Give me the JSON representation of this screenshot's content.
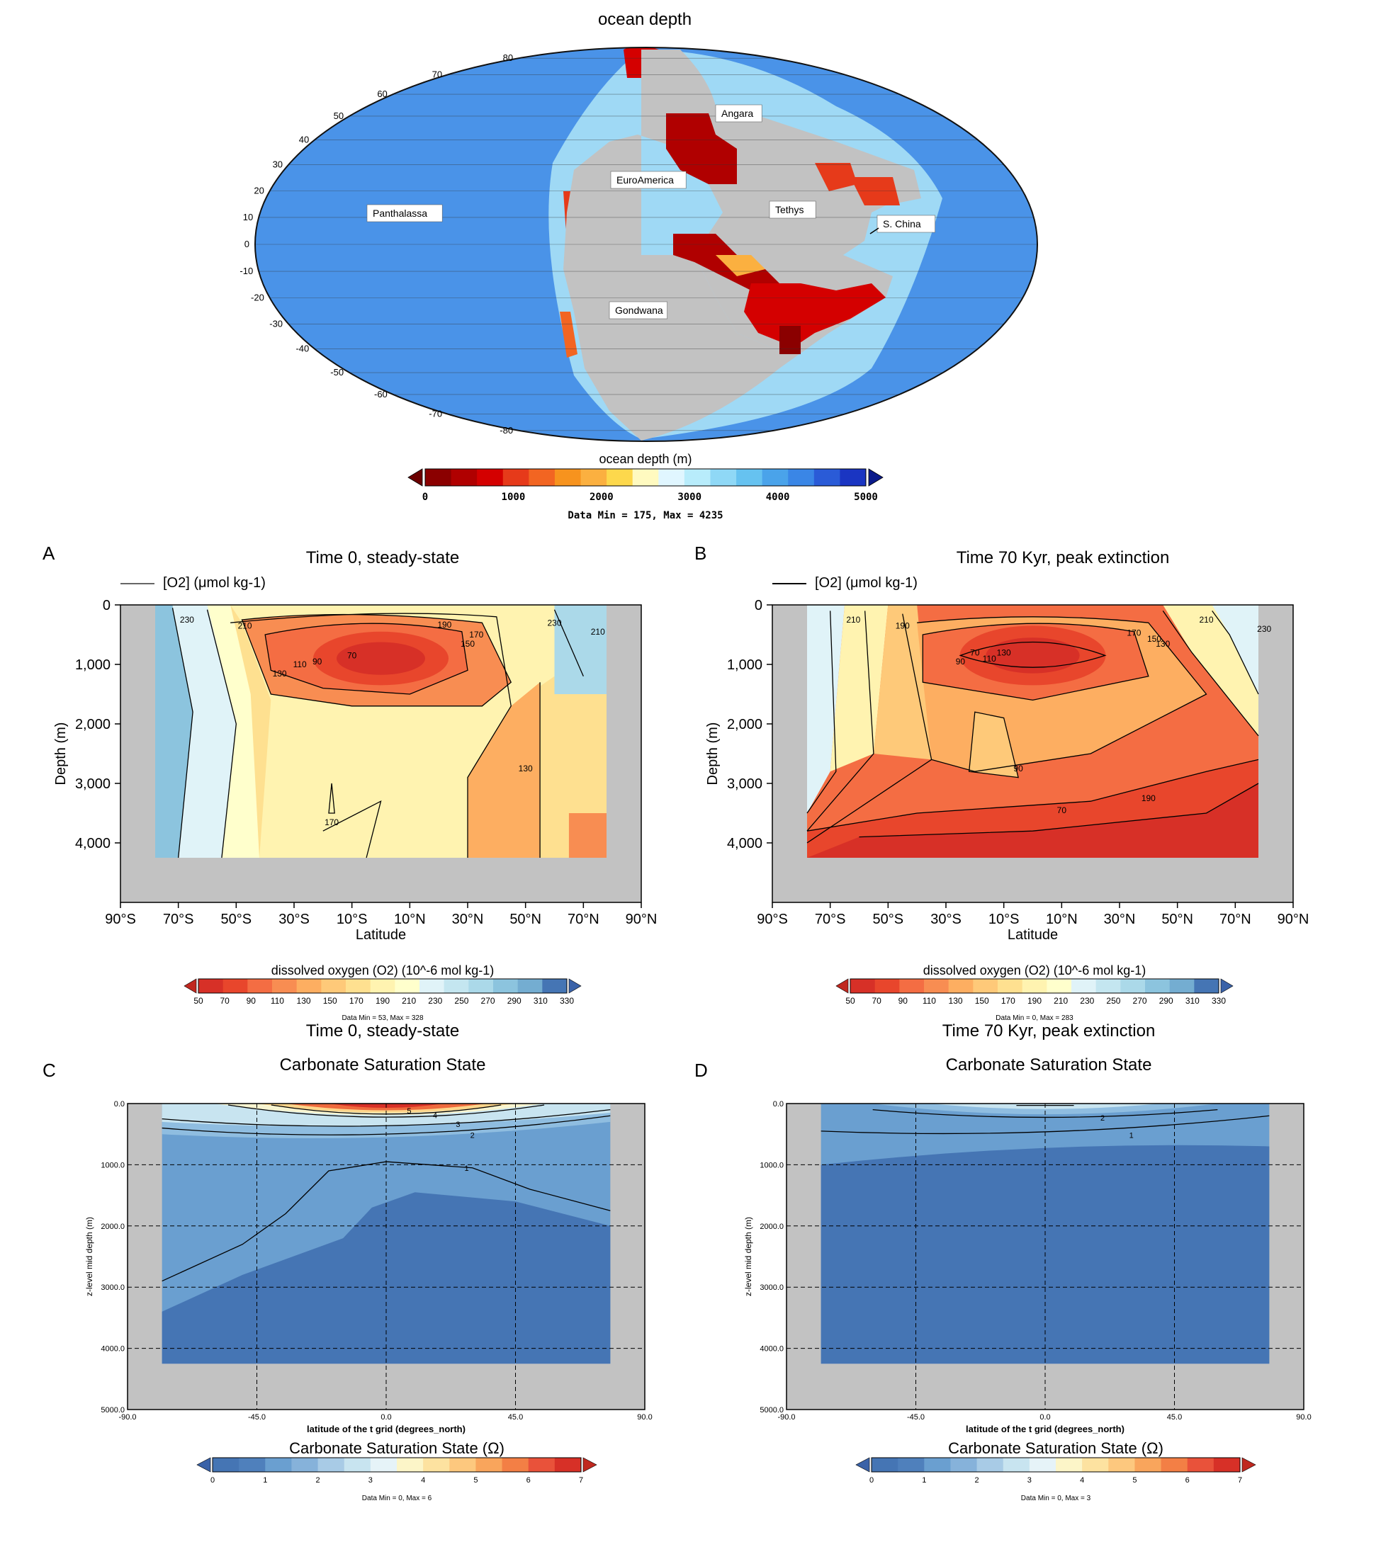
{
  "chart_data": [
    {
      "id": "map",
      "type": "heatmap",
      "title": "ocean depth",
      "projection": "mollweide",
      "lat_ticks": [
        "80",
        "70",
        "60",
        "50",
        "40",
        "30",
        "20",
        "10",
        "0",
        "-10",
        "-20",
        "-30",
        "-40",
        "-50",
        "-60",
        "-70",
        "-80"
      ],
      "regions": [
        "Angara",
        "EuroAmerica",
        "Panthalassa",
        "Tethys",
        "S. China",
        "Gondwana"
      ],
      "colorbar": {
        "label": "ocean depth (m)",
        "ticks": [
          "0",
          "1000",
          "2000",
          "3000",
          "4000",
          "5000"
        ],
        "range": [
          0,
          5000
        ],
        "colors": [
          "#8b0000",
          "#b00000",
          "#d40000",
          "#e63a1a",
          "#f26522",
          "#f7931e",
          "#fbb040",
          "#fdd84c",
          "#fffac0",
          "#e0f6ff",
          "#b8ecfb",
          "#8fd8f6",
          "#66c2f0",
          "#4aa3ea",
          "#3a86e6",
          "#2a5bd7",
          "#1a35c2"
        ],
        "stats": "Data Min = 175, Max = 4235"
      }
    },
    {
      "id": "A",
      "letter": "A",
      "type": "heatmap",
      "title": "Time 0, steady-state",
      "legend_label": "[O2] (μmol kg-1)",
      "xlabel": "Latitude",
      "ylabel": "Depth (m)",
      "x_ticks": [
        "90°S",
        "70°S",
        "50°S",
        "30°S",
        "10°S",
        "10°N",
        "30°N",
        "50°N",
        "70°N",
        "90°N"
      ],
      "y_ticks": [
        "0",
        "1,000",
        "2,000",
        "3,000",
        "4,000"
      ],
      "ylim": [
        0,
        5000
      ],
      "contour_labels": [
        "230",
        "210",
        "190",
        "170",
        "150",
        "130",
        "110",
        "90",
        "70",
        "170",
        "130",
        "230",
        "210"
      ],
      "colorbar": {
        "label": "dissolved oxygen (O2) (10^-6 mol kg-1)",
        "ticks": [
          "50",
          "70",
          "90",
          "110",
          "130",
          "150",
          "170",
          "190",
          "210",
          "230",
          "250",
          "270",
          "290",
          "310",
          "330"
        ],
        "stats": "Data Min = 53, Max = 328"
      }
    },
    {
      "id": "B",
      "letter": "B",
      "type": "heatmap",
      "title": "Time 70 Kyr, peak extinction",
      "legend_label": "[O2] (μmol kg-1)",
      "xlabel": "Latitude",
      "ylabel": "Depth (m)",
      "x_ticks": [
        "90°S",
        "70°S",
        "50°S",
        "30°S",
        "10°S",
        "10°N",
        "30°N",
        "50°N",
        "70°N",
        "90°N"
      ],
      "y_ticks": [
        "0",
        "1,000",
        "2,000",
        "3,000",
        "4,000"
      ],
      "ylim": [
        0,
        5000
      ],
      "contour_labels": [
        "210",
        "190",
        "170",
        "150",
        "130",
        "110",
        "90",
        "70",
        "130",
        "90",
        "70",
        "190",
        "210",
        "230"
      ],
      "colorbar": {
        "label": "dissolved oxygen (O2) (10^-6 mol kg-1)",
        "ticks": [
          "50",
          "70",
          "90",
          "110",
          "130",
          "150",
          "170",
          "190",
          "210",
          "230",
          "250",
          "270",
          "290",
          "310",
          "330"
        ],
        "stats": "Data Min = 0, Max = 283"
      }
    },
    {
      "id": "C",
      "letter": "C",
      "type": "heatmap",
      "title": "Time 0, steady-state",
      "subtitle": "Carbonate Saturation State",
      "xlabel": "latitude of the t grid (degrees_north)",
      "ylabel": "z-level mid depth (m)",
      "x_ticks": [
        "-90.0",
        "-45.0",
        "0.0",
        "45.0",
        "90.0"
      ],
      "y_ticks": [
        "0.0",
        "1000.0",
        "2000.0",
        "3000.0",
        "4000.0",
        "5000.0"
      ],
      "ylim": [
        0,
        5000
      ],
      "contour_labels": [
        "5",
        "4",
        "3",
        "2",
        "1"
      ],
      "colorbar": {
        "label": "Carbonate Saturation State (Ω)",
        "ticks": [
          "0",
          "1",
          "2",
          "3",
          "4",
          "5",
          "6",
          "7"
        ],
        "stats": "Data Min = 0, Max = 6"
      }
    },
    {
      "id": "D",
      "letter": "D",
      "type": "heatmap",
      "title": "Time 70 Kyr, peak extinction",
      "subtitle": "Carbonate Saturation State",
      "xlabel": "latitude of the t grid (degrees_north)",
      "ylabel": "z-level mid depth (m)",
      "x_ticks": [
        "-90.0",
        "-45.0",
        "0.0",
        "45.0",
        "90.0"
      ],
      "y_ticks": [
        "0.0",
        "1000.0",
        "2000.0",
        "3000.0",
        "4000.0",
        "5000.0"
      ],
      "ylim": [
        0,
        5000
      ],
      "contour_labels": [
        "2",
        "1"
      ],
      "colorbar": {
        "label": "Carbonate Saturation State (Ω)",
        "ticks": [
          "0",
          "1",
          "2",
          "3",
          "4",
          "5",
          "6",
          "7"
        ],
        "stats": "Data Min = 0, Max = 3"
      }
    }
  ],
  "o2_colors": [
    "#d73027",
    "#e8462c",
    "#f46d43",
    "#f88d52",
    "#fdae61",
    "#fec979",
    "#fee090",
    "#fff3b0",
    "#ffffcc",
    "#e0f3f8",
    "#c4e6f0",
    "#abd9e9",
    "#8cc4de",
    "#74add1",
    "#4575b4"
  ],
  "omega_colors": [
    "#4575b4",
    "#6a9fd0",
    "#8fbde0",
    "#c8e4f0",
    "#f7f4d0",
    "#fdd58a",
    "#f9a55c",
    "#ef6a3d",
    "#d73027"
  ],
  "colors": {
    "land": "#c2c2c2",
    "ocean": "#4a93e8",
    "shelf_gray": "#bdbdbd"
  }
}
